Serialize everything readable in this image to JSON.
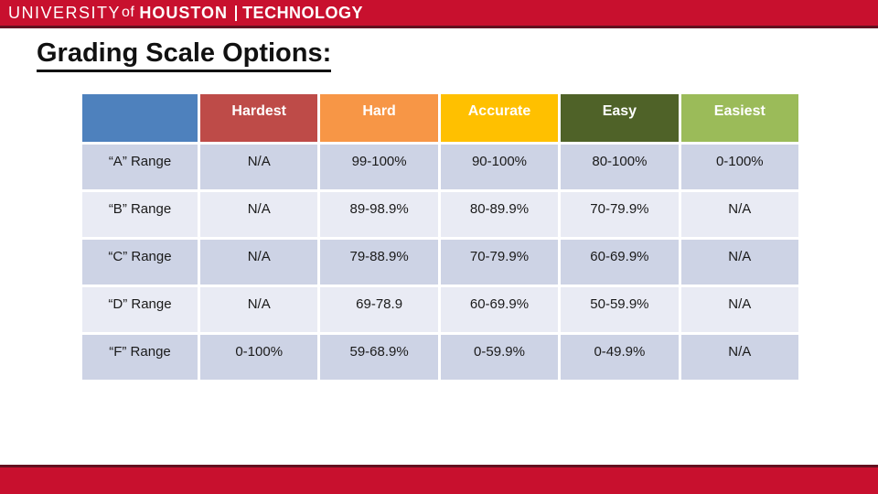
{
  "brand": {
    "university": "UNIVERSITY",
    "of": "of",
    "houston": "HOUSTON",
    "college": "TECHNOLOGY"
  },
  "title": "Grading Scale Options:",
  "table": {
    "columns": [
      {
        "label": "",
        "color": "#4E81BD"
      },
      {
        "label": "Hardest",
        "color": "#BE4B48"
      },
      {
        "label": "Hard",
        "color": "#F79646"
      },
      {
        "label": "Accurate",
        "color": "#FFC000"
      },
      {
        "label": "Easy",
        "color": "#4F6228"
      },
      {
        "label": "Easiest",
        "color": "#9BBB59"
      }
    ],
    "rows": [
      {
        "label": "“A” Range",
        "values": [
          "N/A",
          "99-100%",
          "90-100%",
          "80-100%",
          "0-100%"
        ]
      },
      {
        "label": "“B” Range",
        "values": [
          "N/A",
          "89-98.9%",
          "80-89.9%",
          "70-79.9%",
          "N/A"
        ]
      },
      {
        "label": "“C” Range",
        "values": [
          "N/A",
          "79-88.9%",
          "70-79.9%",
          "60-69.9%",
          "N/A"
        ]
      },
      {
        "label": "“D” Range",
        "values": [
          "N/A",
          "69-78.9",
          "60-69.9%",
          "50-59.9%",
          "N/A"
        ]
      },
      {
        "label": "“F” Range",
        "values": [
          "0-100%",
          "59-68.9%",
          "0-59.9%",
          "0-49.9%",
          "N/A"
        ]
      }
    ]
  },
  "colors": {
    "brand_red": "#C8102E",
    "brand_maroon": "#63101F",
    "band_dark": "#CDD3E5",
    "band_light": "#E9EBF4"
  }
}
